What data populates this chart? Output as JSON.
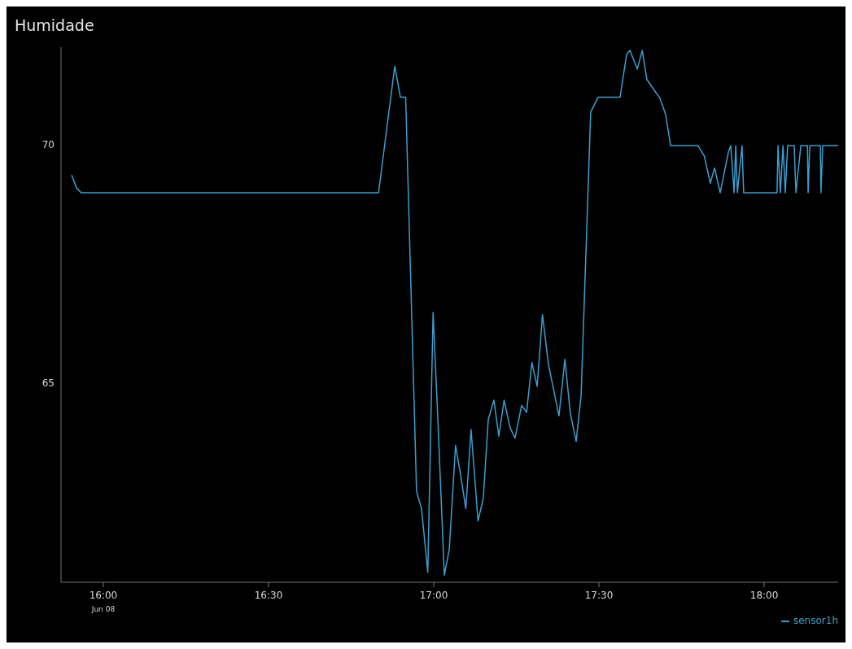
{
  "chart_data": {
    "type": "line",
    "title": "Humidade",
    "x": [
      15.904,
      15.919,
      15.933,
      16.833,
      16.882,
      16.899,
      16.915,
      16.948,
      16.963,
      16.982,
      16.998,
      17.012,
      17.032,
      17.047,
      17.066,
      17.081,
      17.097,
      17.113,
      17.134,
      17.15,
      17.165,
      17.182,
      17.197,
      17.213,
      17.231,
      17.246,
      17.266,
      17.281,
      17.297,
      17.313,
      17.329,
      17.347,
      17.379,
      17.397,
      17.413,
      17.431,
      17.446,
      17.475,
      17.498,
      17.564,
      17.584,
      17.594,
      17.616,
      17.631,
      17.645,
      17.66,
      17.685,
      17.702,
      17.717,
      17.8,
      17.819,
      17.837,
      17.85,
      17.867,
      17.892,
      17.899,
      17.909,
      17.914,
      17.919,
      17.933,
      17.938,
      18.039,
      18.042,
      18.049,
      18.057,
      18.064,
      18.071,
      18.091,
      18.096,
      18.111,
      18.131,
      18.133,
      18.138,
      18.17,
      18.172,
      18.177,
      18.224
    ],
    "series": [
      {
        "name": "sensor1h",
        "color": "#3a9fd0",
        "values": [
          69.36,
          69.09,
          68.99,
          68.99,
          71.65,
          71.0,
          71.0,
          62.71,
          62.35,
          61.01,
          66.47,
          64.3,
          60.95,
          61.49,
          63.68,
          63.07,
          62.35,
          64.01,
          62.09,
          62.57,
          64.22,
          64.63,
          63.87,
          64.63,
          64.05,
          63.83,
          64.52,
          64.37,
          65.42,
          64.92,
          66.43,
          65.39,
          64.3,
          65.49,
          64.37,
          63.76,
          64.73,
          70.69,
          71.0,
          71.0,
          71.91,
          71.98,
          71.59,
          71.98,
          71.37,
          71.22,
          70.97,
          70.63,
          69.98,
          69.98,
          69.76,
          69.19,
          69.51,
          68.99,
          69.85,
          69.98,
          68.99,
          69.98,
          68.99,
          69.98,
          68.99,
          68.99,
          69.98,
          68.99,
          69.98,
          68.99,
          69.98,
          69.98,
          68.99,
          69.98,
          69.98,
          68.99,
          69.98,
          69.98,
          68.99,
          69.98,
          69.98
        ]
      }
    ],
    "xlim": [
      15.872,
      18.224
    ],
    "annotations": [
      "Jun 08"
    ],
    "xticks": [
      {
        "value": 16,
        "label": "16:00"
      },
      {
        "value": 16.5,
        "label": "16:30"
      },
      {
        "value": 17,
        "label": "17:00"
      },
      {
        "value": 17.5,
        "label": "17:30"
      },
      {
        "value": 18,
        "label": "18:00"
      }
    ],
    "ylim": [
      60.8,
      72.05
    ],
    "yticks": [
      65,
      70
    ],
    "grid": false,
    "legend": "bottom right",
    "marker": "none",
    "line_style": "solid"
  }
}
